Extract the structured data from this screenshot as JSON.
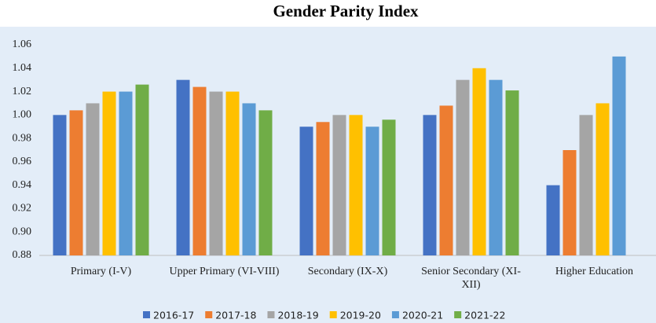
{
  "chart_data": {
    "type": "bar",
    "title": "Gender Parity Index",
    "categories": [
      "Primary (I-V)",
      "Upper Primary (VI-VIII)",
      "Secondary (IX-X)",
      "Senior Secondary (XI-XII)",
      "Higher Education"
    ],
    "series": [
      {
        "name": "2016-17",
        "color": "#4472c4",
        "values": [
          1.0,
          1.03,
          0.99,
          1.0,
          0.94
        ]
      },
      {
        "name": "2017-18",
        "color": "#ed7d31",
        "values": [
          1.004,
          1.024,
          0.994,
          1.008,
          0.97
        ]
      },
      {
        "name": "2018-19",
        "color": "#a5a5a5",
        "values": [
          1.01,
          1.02,
          1.0,
          1.03,
          1.0
        ]
      },
      {
        "name": "2019-20",
        "color": "#ffc000",
        "values": [
          1.02,
          1.02,
          1.0,
          1.04,
          1.01
        ]
      },
      {
        "name": "2020-21",
        "color": "#5b9bd5",
        "values": [
          1.02,
          1.01,
          0.99,
          1.03,
          1.05
        ]
      },
      {
        "name": "2021-22",
        "color": "#70ad47",
        "values": [
          1.026,
          1.004,
          0.996,
          1.021,
          null
        ]
      }
    ],
    "ylim": [
      0.88,
      1.06
    ],
    "yticks": [
      0.88,
      {
        "value": 0.9,
        "label": "0.90"
      },
      0.92,
      0.94,
      0.96,
      0.98,
      {
        "value": 1.0,
        "label": "1.00"
      },
      1.02,
      1.04,
      1.06
    ],
    "grid": false,
    "legend": "bottom"
  }
}
